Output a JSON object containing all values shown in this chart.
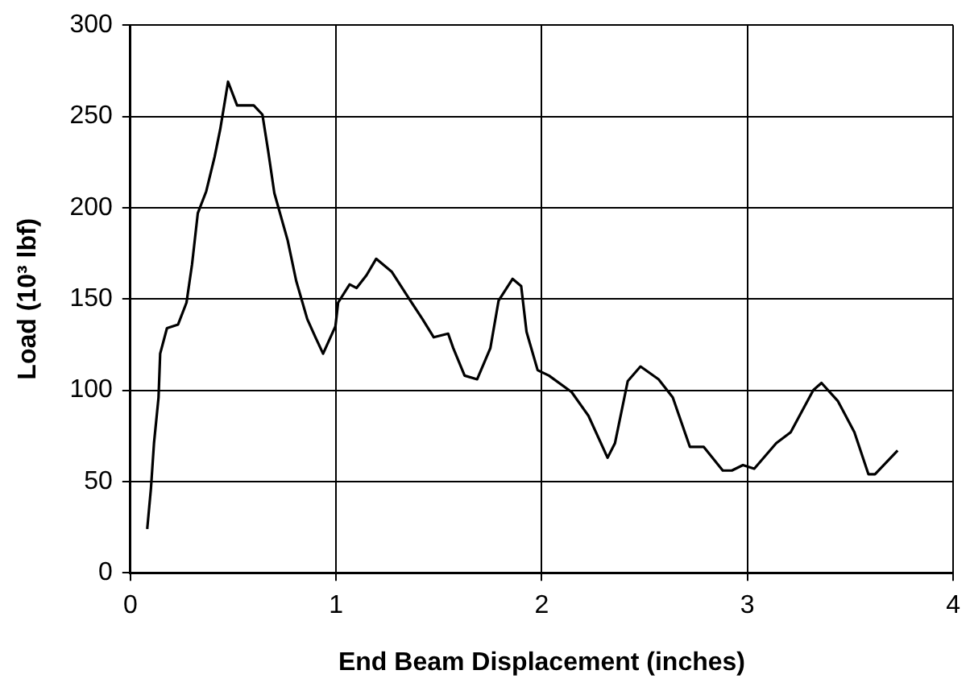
{
  "chart_data": {
    "type": "line",
    "xlabel": "End Beam Displacement (inches)",
    "ylabel": "Load (10³ lbf)",
    "xlim": [
      0,
      4
    ],
    "xticks": [
      0,
      1,
      2,
      3,
      4
    ],
    "ylim": [
      0,
      300
    ],
    "yticks": [
      0,
      50,
      100,
      150,
      200,
      250,
      300
    ],
    "grid": true,
    "legend": false,
    "marker": "none",
    "line_style": "solid",
    "series": [
      {
        "color": "#000000",
        "x": [
          0.082,
          0.1,
          0.115,
          0.137,
          0.145,
          0.178,
          0.232,
          0.273,
          0.3,
          0.328,
          0.369,
          0.41,
          0.437,
          0.465,
          0.475,
          0.519,
          0.6,
          0.642,
          0.67,
          0.7,
          0.765,
          0.806,
          0.86,
          0.9,
          0.937,
          0.997,
          1.01,
          1.066,
          1.1,
          1.148,
          1.195,
          1.27,
          1.35,
          1.42,
          1.475,
          1.545,
          1.57,
          1.625,
          1.686,
          1.75,
          1.79,
          1.858,
          1.9,
          1.926,
          1.98,
          2.035,
          2.145,
          2.227,
          2.32,
          2.356,
          2.418,
          2.48,
          2.568,
          2.637,
          2.72,
          2.787,
          2.88,
          2.924,
          2.978,
          3.033,
          3.14,
          3.21,
          3.32,
          3.36,
          3.44,
          3.52,
          3.588,
          3.62,
          3.73
        ],
        "values": [
          24,
          46,
          71,
          96,
          120,
          134,
          136,
          148,
          169,
          197,
          209,
          228,
          243,
          262,
          269,
          256,
          256,
          251,
          231,
          208,
          182,
          160,
          139,
          129,
          120,
          135,
          148,
          158,
          156,
          163,
          172,
          165,
          151,
          139,
          129,
          131,
          123,
          108,
          106,
          123,
          149,
          161,
          157,
          132,
          111,
          108,
          99,
          86,
          63,
          71,
          105,
          113,
          106,
          96,
          69,
          69,
          56,
          56,
          59,
          57,
          71,
          77,
          100,
          104,
          94,
          77,
          54,
          54,
          67
        ]
      }
    ]
  }
}
